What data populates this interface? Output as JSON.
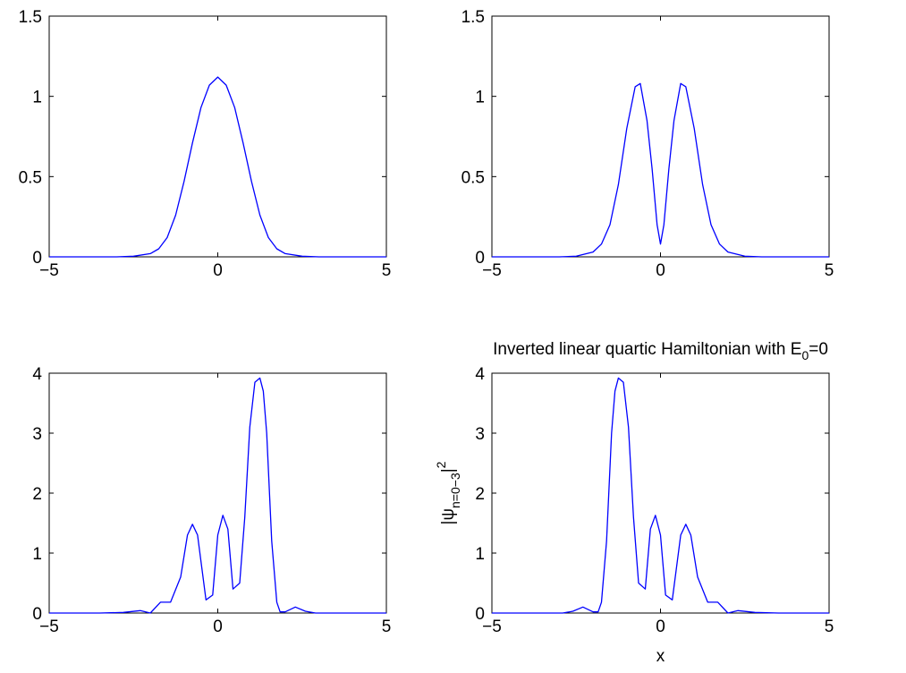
{
  "figure": {
    "background": "#ffffff",
    "line_color": "#0000ff"
  },
  "chart_data": [
    {
      "type": "line",
      "title": "",
      "xlabel": "",
      "ylabel": "",
      "xlim": [
        -5,
        5
      ],
      "ylim": [
        0,
        1.5
      ],
      "xticks": [
        "−5",
        "0",
        "5"
      ],
      "yticks": [
        "0",
        "0.5",
        "1",
        "1.5"
      ],
      "grid": false,
      "series": [
        {
          "x": [
            -5,
            -3,
            -2.5,
            -2,
            -1.75,
            -1.5,
            -1.25,
            -1,
            -0.75,
            -0.5,
            -0.25,
            0,
            0.25,
            0.5,
            0.75,
            1,
            1.25,
            1.5,
            1.75,
            2,
            2.5,
            3,
            5
          ],
          "values": [
            0,
            0,
            0.004,
            0.02,
            0.05,
            0.12,
            0.26,
            0.47,
            0.71,
            0.93,
            1.07,
            1.12,
            1.07,
            0.93,
            0.71,
            0.47,
            0.26,
            0.12,
            0.05,
            0.02,
            0.004,
            0,
            0
          ]
        }
      ]
    },
    {
      "type": "line",
      "title": "",
      "xlabel": "",
      "ylabel": "",
      "xlim": [
        -5,
        5
      ],
      "ylim": [
        0,
        1.5
      ],
      "xticks": [
        "−5",
        "0",
        "5"
      ],
      "yticks": [
        "0",
        "0.5",
        "1",
        "1.5"
      ],
      "grid": false,
      "series": [
        {
          "x": [
            -5,
            -3,
            -2.5,
            -2,
            -1.75,
            -1.5,
            -1.25,
            -1,
            -0.75,
            -0.6,
            -0.4,
            -0.25,
            -0.1,
            0,
            0.1,
            0.25,
            0.4,
            0.6,
            0.75,
            1,
            1.25,
            1.5,
            1.75,
            2,
            2.5,
            3,
            5
          ],
          "values": [
            0,
            0,
            0.004,
            0.03,
            0.08,
            0.2,
            0.45,
            0.8,
            1.06,
            1.08,
            0.85,
            0.55,
            0.2,
            0.08,
            0.2,
            0.55,
            0.85,
            1.08,
            1.06,
            0.8,
            0.45,
            0.2,
            0.08,
            0.03,
            0.004,
            0,
            0
          ]
        }
      ]
    },
    {
      "type": "line",
      "title": "",
      "xlabel": "",
      "ylabel": "",
      "xlim": [
        -5,
        5
      ],
      "ylim": [
        0,
        4
      ],
      "xticks": [
        "−5",
        "0",
        "5"
      ],
      "yticks": [
        "0",
        "1",
        "2",
        "3",
        "4"
      ],
      "grid": false,
      "series": [
        {
          "x": [
            -5,
            -3.5,
            -2.8,
            -2.3,
            -2.0,
            -1.7,
            -1.4,
            -1.1,
            -0.9,
            -0.75,
            -0.6,
            -0.35,
            -0.15,
            0.0,
            0.15,
            0.3,
            0.45,
            0.65,
            0.8,
            0.95,
            1.1,
            1.25,
            1.35,
            1.45,
            1.6,
            1.75,
            1.85,
            2.0,
            2.3,
            2.6,
            2.9,
            3.5,
            5
          ],
          "values": [
            0,
            0,
            0.01,
            0.04,
            0.0,
            0.18,
            0.18,
            0.6,
            1.3,
            1.48,
            1.3,
            0.22,
            0.3,
            1.3,
            1.63,
            1.4,
            0.4,
            0.5,
            1.6,
            3.1,
            3.85,
            3.92,
            3.7,
            3.0,
            1.2,
            0.18,
            0.02,
            0.02,
            0.1,
            0.03,
            0.0,
            0,
            0
          ]
        }
      ]
    },
    {
      "type": "line",
      "title": "Inverted linear quartic Hamiltonian with E0=0",
      "xlabel": "x",
      "ylabel": "|ψn=0−3|2",
      "xlim": [
        -5,
        5
      ],
      "ylim": [
        0,
        4
      ],
      "xticks": [
        "−5",
        "0",
        "5"
      ],
      "yticks": [
        "0",
        "1",
        "2",
        "3",
        "4"
      ],
      "grid": false,
      "series": [
        {
          "x": [
            -5,
            -3.5,
            -2.9,
            -2.6,
            -2.3,
            -2.0,
            -1.85,
            -1.75,
            -1.6,
            -1.45,
            -1.35,
            -1.25,
            -1.1,
            -0.95,
            -0.8,
            -0.65,
            -0.45,
            -0.3,
            -0.15,
            0.0,
            0.15,
            0.35,
            0.6,
            0.75,
            0.9,
            1.1,
            1.4,
            1.7,
            2.0,
            2.3,
            2.8,
            3.5,
            5
          ],
          "values": [
            0,
            0,
            0.0,
            0.03,
            0.1,
            0.02,
            0.02,
            0.18,
            1.2,
            3.0,
            3.7,
            3.92,
            3.85,
            3.1,
            1.6,
            0.5,
            0.4,
            1.4,
            1.63,
            1.3,
            0.3,
            0.22,
            1.3,
            1.48,
            1.3,
            0.6,
            0.18,
            0.18,
            0.0,
            0.04,
            0.01,
            0,
            0
          ]
        }
      ]
    }
  ]
}
